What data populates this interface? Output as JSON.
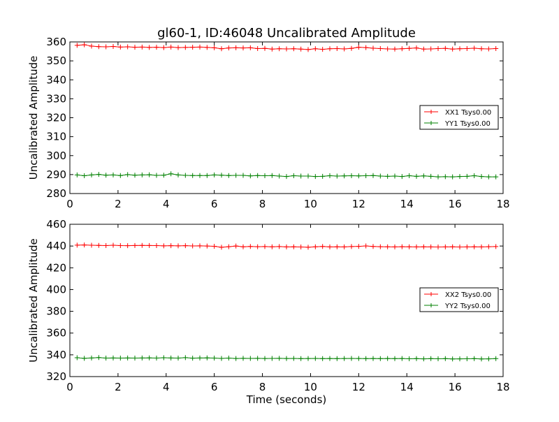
{
  "title": "gl60-1, ID:46048 Uncalibrated Amplitude",
  "chart_data": [
    {
      "type": "line",
      "ylabel": "Uncalibrated Amplitude",
      "xlabel": "",
      "xlim": [
        0,
        18
      ],
      "ylim": [
        280,
        360
      ],
      "xticks": [
        "0",
        "2",
        "4",
        "6",
        "8",
        "10",
        "12",
        "14",
        "16",
        "18"
      ],
      "yticks": [
        "280",
        "290",
        "300",
        "310",
        "320",
        "330",
        "340",
        "350",
        "360"
      ],
      "legend_position": "right-middle",
      "x": [
        0.3,
        0.6,
        0.9,
        1.2,
        1.5,
        1.8,
        2.1,
        2.4,
        2.7,
        3.0,
        3.3,
        3.6,
        3.9,
        4.2,
        4.5,
        4.8,
        5.1,
        5.4,
        5.7,
        6.0,
        6.3,
        6.6,
        6.9,
        7.2,
        7.5,
        7.8,
        8.1,
        8.4,
        8.7,
        9.0,
        9.3,
        9.6,
        9.9,
        10.2,
        10.5,
        10.8,
        11.1,
        11.4,
        11.7,
        12.0,
        12.3,
        12.6,
        12.9,
        13.2,
        13.5,
        13.8,
        14.1,
        14.4,
        14.7,
        15.0,
        15.3,
        15.6,
        15.9,
        16.2,
        16.5,
        16.8,
        17.1,
        17.4,
        17.7
      ],
      "series": [
        {
          "name": "XX1 Tsys0.00",
          "color": "#ff0000",
          "values": [
            358.2,
            358.5,
            357.8,
            357.5,
            357.4,
            357.6,
            357.3,
            357.4,
            357.2,
            357.3,
            357.1,
            357.2,
            357.0,
            357.3,
            357.0,
            357.1,
            357.2,
            357.3,
            357.1,
            356.9,
            356.4,
            356.8,
            356.9,
            356.8,
            356.9,
            356.5,
            356.6,
            356.2,
            356.4,
            356.3,
            356.4,
            356.2,
            356.0,
            356.4,
            356.1,
            356.4,
            356.5,
            356.3,
            356.6,
            357.2,
            357.0,
            356.7,
            356.5,
            356.3,
            356.2,
            356.4,
            356.6,
            356.8,
            356.2,
            356.3,
            356.5,
            356.6,
            356.2,
            356.4,
            356.5,
            356.7,
            356.4,
            356.3,
            356.5
          ]
        },
        {
          "name": "YY1 Tsys0.00",
          "color": "#008000",
          "values": [
            289.8,
            289.4,
            289.8,
            290.1,
            289.7,
            289.8,
            289.5,
            290.0,
            289.7,
            289.8,
            289.9,
            289.6,
            289.7,
            290.4,
            289.8,
            289.6,
            289.5,
            289.5,
            289.5,
            289.8,
            289.7,
            289.5,
            289.6,
            289.6,
            289.3,
            289.5,
            289.4,
            289.5,
            289.2,
            289.0,
            289.4,
            289.2,
            289.2,
            289.0,
            289.1,
            289.4,
            289.2,
            289.3,
            289.4,
            289.3,
            289.4,
            289.5,
            289.2,
            289.1,
            289.2,
            289.0,
            289.4,
            289.1,
            289.3,
            289.1,
            288.8,
            288.9,
            288.8,
            289.0,
            289.1,
            289.4,
            289.0,
            288.8,
            288.8
          ]
        }
      ]
    },
    {
      "type": "line",
      "ylabel": "Uncalibrated Amplitude",
      "xlabel": "Time (seconds)",
      "xlim": [
        0,
        18
      ],
      "ylim": [
        320,
        460
      ],
      "xticks": [
        "0",
        "2",
        "4",
        "6",
        "8",
        "10",
        "12",
        "14",
        "16",
        "18"
      ],
      "yticks": [
        "320",
        "340",
        "360",
        "380",
        "400",
        "420",
        "440",
        "460"
      ],
      "legend_position": "right-middle",
      "x": [
        0.3,
        0.6,
        0.9,
        1.2,
        1.5,
        1.8,
        2.1,
        2.4,
        2.7,
        3.0,
        3.3,
        3.6,
        3.9,
        4.2,
        4.5,
        4.8,
        5.1,
        5.4,
        5.7,
        6.0,
        6.3,
        6.6,
        6.9,
        7.2,
        7.5,
        7.8,
        8.1,
        8.4,
        8.7,
        9.0,
        9.3,
        9.6,
        9.9,
        10.2,
        10.5,
        10.8,
        11.1,
        11.4,
        11.7,
        12.0,
        12.3,
        12.6,
        12.9,
        13.2,
        13.5,
        13.8,
        14.1,
        14.4,
        14.7,
        15.0,
        15.3,
        15.6,
        15.9,
        16.2,
        16.5,
        16.8,
        17.1,
        17.4,
        17.7
      ],
      "series": [
        {
          "name": "XX2 Tsys0.00",
          "color": "#ff0000",
          "values": [
            440.8,
            441.0,
            440.7,
            440.6,
            440.4,
            440.7,
            440.4,
            440.3,
            440.5,
            440.6,
            440.5,
            440.4,
            440.2,
            440.3,
            440.2,
            440.3,
            440.1,
            440.2,
            440.0,
            439.8,
            438.9,
            439.4,
            440.0,
            439.3,
            439.6,
            439.4,
            439.5,
            439.3,
            439.5,
            439.2,
            439.3,
            439.1,
            438.9,
            439.3,
            439.6,
            439.2,
            439.3,
            439.2,
            439.5,
            439.7,
            440.1,
            439.6,
            439.4,
            439.3,
            439.2,
            439.4,
            439.3,
            439.2,
            439.3,
            439.2,
            439.1,
            439.2,
            439.3,
            439.1,
            439.2,
            439.3,
            439.2,
            439.4,
            439.5
          ]
        },
        {
          "name": "YY2 Tsys0.00",
          "color": "#008000",
          "values": [
            337.3,
            336.8,
            337.1,
            337.5,
            337.0,
            337.1,
            337.0,
            337.1,
            337.0,
            337.1,
            337.2,
            337.0,
            337.3,
            337.1,
            337.0,
            337.4,
            336.9,
            337.1,
            337.2,
            337.0,
            336.7,
            337.0,
            336.6,
            336.8,
            336.7,
            336.8,
            336.6,
            336.7,
            336.8,
            336.6,
            336.7,
            336.5,
            336.6,
            336.7,
            336.5,
            336.6,
            336.5,
            336.6,
            336.7,
            336.6,
            336.5,
            336.6,
            336.5,
            336.6,
            336.5,
            336.6,
            336.4,
            336.5,
            336.3,
            336.5,
            336.4,
            336.5,
            336.2,
            336.3,
            336.4,
            336.5,
            336.2,
            336.3,
            336.5
          ]
        }
      ]
    }
  ]
}
